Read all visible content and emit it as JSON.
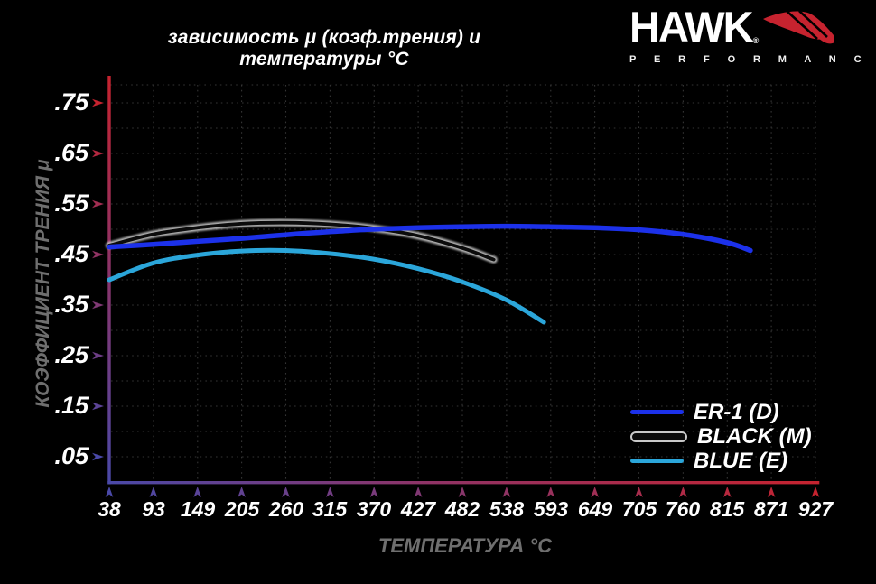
{
  "title": "зависимость μ (коэф.трения) и температуры °C",
  "logo": {
    "brand": "HAWK",
    "registered": "®",
    "subtitle": "P E R F O R M A N C E",
    "wing_color": "#c6232f"
  },
  "colors": {
    "background": "#000000",
    "grid": "#343434",
    "label_white": "#ffffff",
    "muted_label": "#6f6f6f",
    "axis_left_gradient": [
      "#c6232f",
      "#8f3366",
      "#4a49a8"
    ],
    "axis_bottom_gradient": [
      "#4a49a8",
      "#8f3366",
      "#c6232f"
    ],
    "y_arrow_colors": [
      "#c6232f",
      "#b42840",
      "#a32e52",
      "#913363",
      "#7f3974",
      "#6d3e86",
      "#5c4497",
      "#4a49a8"
    ],
    "x_arrow_colors": [
      "#4a49a8",
      "#5247a0",
      "#5a4499",
      "#614291",
      "#69408a",
      "#713d82",
      "#793b7b",
      "#803873",
      "#88366b",
      "#903464",
      "#98315c",
      "#9f2f55",
      "#a72d4d",
      "#af2a46",
      "#b7283e",
      "#be2537",
      "#c6232f"
    ]
  },
  "chart_data": {
    "type": "line",
    "title": "зависимость μ (коэф.трения) и температуры °C",
    "xlabel": "ТЕМПЕРАТУРА °C",
    "ylabel": "КОЭФФИЦИЕНТ ТРЕНИЯ μ",
    "xlim": [
      38,
      927
    ],
    "ylim": [
      0,
      0.79
    ],
    "grid": true,
    "legend_position": "lower right",
    "x_ticks": [
      38,
      93,
      149,
      205,
      260,
      315,
      370,
      427,
      482,
      538,
      593,
      649,
      705,
      760,
      815,
      871,
      927
    ],
    "y_ticks": [
      {
        "label": ".75",
        "value": 0.75
      },
      {
        "label": ".65",
        "value": 0.65
      },
      {
        "label": ".55",
        "value": 0.55
      },
      {
        "label": ".45",
        "value": 0.45
      },
      {
        "label": ".35",
        "value": 0.35
      },
      {
        "label": ".25",
        "value": 0.25
      },
      {
        "label": ".15",
        "value": 0.15
      },
      {
        "label": ".05",
        "value": 0.05
      }
    ],
    "series": [
      {
        "id": "er1-d",
        "name": "ER-1 (D)",
        "color": "#1c31ea",
        "points": [
          [
            38,
            0.465
          ],
          [
            93,
            0.47
          ],
          [
            149,
            0.476
          ],
          [
            205,
            0.482
          ],
          [
            260,
            0.489
          ],
          [
            315,
            0.495
          ],
          [
            370,
            0.5
          ],
          [
            427,
            0.503
          ],
          [
            482,
            0.505
          ],
          [
            538,
            0.506
          ],
          [
            593,
            0.505
          ],
          [
            649,
            0.503
          ],
          [
            705,
            0.499
          ],
          [
            760,
            0.49
          ],
          [
            815,
            0.474
          ],
          [
            845,
            0.458
          ]
        ]
      },
      {
        "id": "black-m",
        "name": "BLACK (M)",
        "color": "#0b0b0b",
        "outline": "#c9c9c9",
        "points": [
          [
            38,
            0.468
          ],
          [
            93,
            0.49
          ],
          [
            149,
            0.503
          ],
          [
            205,
            0.511
          ],
          [
            260,
            0.513
          ],
          [
            315,
            0.51
          ],
          [
            370,
            0.502
          ],
          [
            427,
            0.487
          ],
          [
            482,
            0.463
          ],
          [
            522,
            0.44
          ]
        ]
      },
      {
        "id": "blue-e",
        "name": "BLUE (E)",
        "color": "#2ba6da",
        "points": [
          [
            38,
            0.4
          ],
          [
            93,
            0.433
          ],
          [
            149,
            0.449
          ],
          [
            205,
            0.457
          ],
          [
            260,
            0.458
          ],
          [
            315,
            0.452
          ],
          [
            370,
            0.441
          ],
          [
            427,
            0.422
          ],
          [
            482,
            0.396
          ],
          [
            538,
            0.36
          ],
          [
            585,
            0.316
          ]
        ]
      }
    ]
  }
}
